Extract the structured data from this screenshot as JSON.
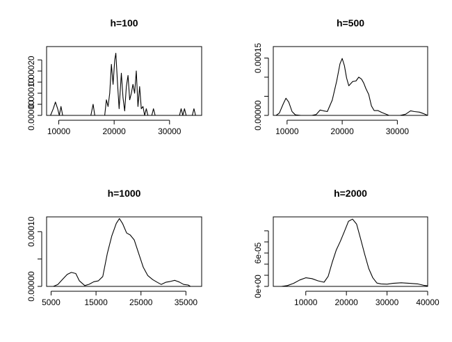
{
  "chart_data": [
    {
      "type": "line",
      "title": "h=100",
      "xlim": [
        7800,
        35800
      ],
      "ylim": [
        0,
        0.00031
      ],
      "x_ticks": [
        10000,
        20000,
        30000
      ],
      "x_tick_labels": [
        "10000",
        "20000",
        "30000"
      ],
      "y_ticks": [
        0,
        5e-05,
        0.0001,
        0.00015,
        0.0002,
        0.00025
      ],
      "y_tick_labels": [
        "0.00000",
        "",
        "0.00010",
        "",
        "0.00020",
        ""
      ],
      "points": [
        [
          8500,
          0
        ],
        [
          9000,
          3e-05
        ],
        [
          9400,
          6e-05
        ],
        [
          9800,
          3e-05
        ],
        [
          10100,
          0
        ],
        [
          10400,
          4e-05
        ],
        [
          10700,
          0
        ],
        [
          15800,
          0
        ],
        [
          16200,
          5e-05
        ],
        [
          16500,
          0
        ],
        [
          18300,
          0
        ],
        [
          18600,
          7e-05
        ],
        [
          18900,
          4e-05
        ],
        [
          19200,
          0.0001
        ],
        [
          19500,
          0.00023
        ],
        [
          19800,
          0.00014
        ],
        [
          20100,
          0.00025
        ],
        [
          20300,
          0.00028
        ],
        [
          20600,
          0.00015
        ],
        [
          20900,
          3e-05
        ],
        [
          21300,
          0.00019
        ],
        [
          21600,
          8e-05
        ],
        [
          21900,
          2e-05
        ],
        [
          22200,
          0.00013
        ],
        [
          22500,
          0.00018
        ],
        [
          22800,
          7e-05
        ],
        [
          23100,
          0.0001
        ],
        [
          23400,
          0.00014
        ],
        [
          23700,
          0.0001
        ],
        [
          24000,
          0.0002
        ],
        [
          24300,
          4e-05
        ],
        [
          24600,
          0.00013
        ],
        [
          24900,
          3e-05
        ],
        [
          25200,
          4e-05
        ],
        [
          25500,
          0
        ],
        [
          25800,
          3e-05
        ],
        [
          26100,
          0
        ],
        [
          26800,
          0
        ],
        [
          27100,
          3e-05
        ],
        [
          27400,
          0
        ],
        [
          31800,
          0
        ],
        [
          32100,
          3e-05
        ],
        [
          32400,
          0
        ],
        [
          32700,
          3e-05
        ],
        [
          33000,
          0
        ],
        [
          34100,
          0
        ],
        [
          34400,
          3e-05
        ],
        [
          34700,
          0
        ]
      ]
    },
    {
      "type": "line",
      "title": "h=500",
      "xlim": [
        7500,
        35500
      ],
      "ylim": [
        0,
        0.00018
      ],
      "x_ticks": [
        10000,
        20000,
        30000
      ],
      "x_tick_labels": [
        "10000",
        "20000",
        "30000"
      ],
      "y_ticks": [
        0,
        5e-05,
        0.0001,
        0.00015
      ],
      "y_tick_labels": [
        "0.00000",
        "",
        "",
        "0.00015"
      ],
      "points": [
        [
          8000,
          0
        ],
        [
          8600,
          6e-06
        ],
        [
          9300,
          3e-05
        ],
        [
          9800,
          4.5e-05
        ],
        [
          10300,
          3.5e-05
        ],
        [
          10900,
          1e-05
        ],
        [
          11500,
          1.5e-06
        ],
        [
          12500,
          0
        ],
        [
          14500,
          0
        ],
        [
          15300,
          2.5e-06
        ],
        [
          16000,
          1.4e-05
        ],
        [
          16600,
          1.2e-05
        ],
        [
          17300,
          1e-05
        ],
        [
          18200,
          4e-05
        ],
        [
          19000,
          9e-05
        ],
        [
          19600,
          0.000135
        ],
        [
          20000,
          0.000149
        ],
        [
          20400,
          0.00013
        ],
        [
          20800,
          9.8e-05
        ],
        [
          21200,
          7.75e-05
        ],
        [
          21900,
          8.85e-05
        ],
        [
          22500,
          9e-05
        ],
        [
          23000,
          0.0001
        ],
        [
          23500,
          9.5e-05
        ],
        [
          23900,
          8.5e-05
        ],
        [
          24300,
          7e-05
        ],
        [
          24800,
          5.5e-05
        ],
        [
          25300,
          2.5e-05
        ],
        [
          25800,
          1.25e-05
        ],
        [
          26500,
          1.25e-05
        ],
        [
          27200,
          7.5e-06
        ],
        [
          28500,
          0
        ],
        [
          30500,
          0
        ],
        [
          31500,
          3e-06
        ],
        [
          32400,
          1.2e-05
        ],
        [
          33100,
          1e-05
        ],
        [
          34000,
          8.5e-06
        ],
        [
          34700,
          5e-06
        ],
        [
          35500,
          0
        ]
      ]
    },
    {
      "type": "line",
      "title": "h=1000",
      "xlim": [
        4000,
        38500
      ],
      "ylim": [
        0,
        0.000127
      ],
      "x_ticks": [
        5000,
        15000,
        25000,
        35000
      ],
      "x_tick_labels": [
        "5000",
        "15000",
        "25000",
        "35000"
      ],
      "y_ticks": [
        0,
        5e-05,
        0.0001
      ],
      "y_tick_labels": [
        "0.00000",
        "",
        "0.00010"
      ],
      "points": [
        [
          5500,
          0
        ],
        [
          6500,
          3.5e-06
        ],
        [
          7500,
          1.25e-05
        ],
        [
          8600,
          2.2e-05
        ],
        [
          9500,
          2.55e-05
        ],
        [
          10500,
          2.35e-05
        ],
        [
          11300,
          1e-05
        ],
        [
          12500,
          1.5e-06
        ],
        [
          13500,
          4e-06
        ],
        [
          14500,
          8.5e-06
        ],
        [
          15500,
          1e-05
        ],
        [
          16500,
          1.8e-05
        ],
        [
          17500,
          6e-05
        ],
        [
          18500,
          9.2e-05
        ],
        [
          19500,
          0.000115
        ],
        [
          20200,
          0.000124
        ],
        [
          20900,
          0.000115
        ],
        [
          21800,
          9.75e-05
        ],
        [
          22600,
          9.4e-05
        ],
        [
          23500,
          8.5e-05
        ],
        [
          24500,
          6e-05
        ],
        [
          25500,
          3.5e-05
        ],
        [
          26500,
          2e-05
        ],
        [
          27600,
          1.25e-05
        ],
        [
          28500,
          8e-06
        ],
        [
          29500,
          3.5e-06
        ],
        [
          30500,
          7.5e-06
        ],
        [
          31500,
          9e-06
        ],
        [
          32500,
          1.1e-05
        ],
        [
          33500,
          8e-06
        ],
        [
          34500,
          3.5e-06
        ],
        [
          35500,
          2.5e-06
        ],
        [
          36000,
          0
        ]
      ]
    },
    {
      "type": "line",
      "title": "h=2000",
      "xlim": [
        2000,
        40000
      ],
      "ylim": [
        0,
        0.000125
      ],
      "x_ticks": [
        10000,
        20000,
        30000,
        40000
      ],
      "x_tick_labels": [
        "10000",
        "20000",
        "30000",
        "40000"
      ],
      "y_ticks": [
        0,
        2e-05,
        4e-05,
        6e-05,
        8e-05,
        0.0001
      ],
      "y_tick_labels": [
        "0e+00",
        "",
        "",
        "6e-05",
        "",
        ""
      ],
      "points": [
        [
          3000,
          0
        ],
        [
          4000,
          0
        ],
        [
          5500,
          1.5e-06
        ],
        [
          7000,
          5.5e-06
        ],
        [
          8500,
          1.15e-05
        ],
        [
          10000,
          1.55e-05
        ],
        [
          11500,
          1.4e-05
        ],
        [
          13000,
          1e-05
        ],
        [
          14500,
          7.5e-06
        ],
        [
          15500,
          1.8e-05
        ],
        [
          16500,
          4.3e-05
        ],
        [
          17500,
          6.55e-05
        ],
        [
          18500,
          8.1e-05
        ],
        [
          19500,
          9.85e-05
        ],
        [
          20500,
          0.000117
        ],
        [
          21500,
          0.000121
        ],
        [
          22500,
          0.000112
        ],
        [
          23500,
          8.55e-05
        ],
        [
          24500,
          5.8e-05
        ],
        [
          25500,
          3.2e-05
        ],
        [
          26500,
          1.55e-05
        ],
        [
          27500,
          6e-06
        ],
        [
          28500,
          4.5e-06
        ],
        [
          30000,
          4e-06
        ],
        [
          31500,
          5.5e-06
        ],
        [
          33500,
          6.5e-06
        ],
        [
          35500,
          5.5e-06
        ],
        [
          37500,
          4.5e-06
        ],
        [
          39000,
          2e-06
        ],
        [
          40000,
          1e-06
        ]
      ]
    }
  ]
}
